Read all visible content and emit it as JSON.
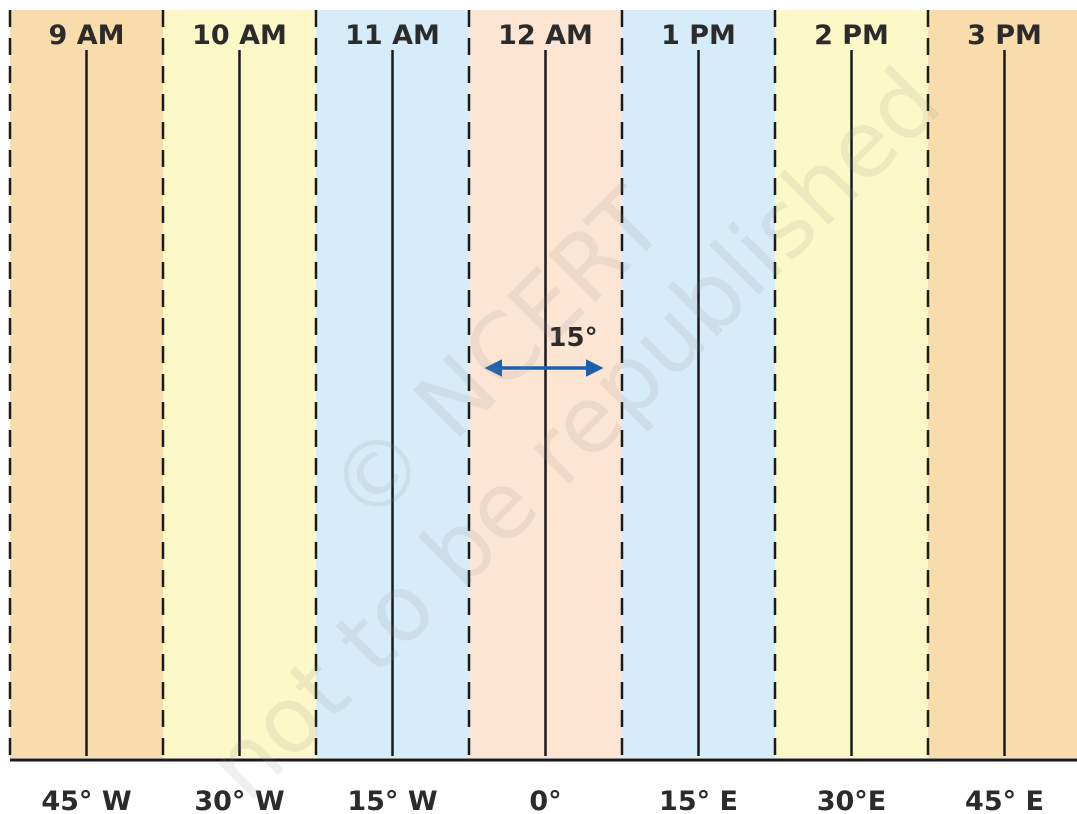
{
  "zones": [
    {
      "time": "9 AM",
      "longitude": "45° W",
      "color": "#f8dcab"
    },
    {
      "time": "10 AM",
      "longitude": "30° W",
      "color": "#fdf8c7"
    },
    {
      "time": "11 AM",
      "longitude": "15° W",
      "color": "#d6ecf8"
    },
    {
      "time": "12 AM",
      "longitude": "0°",
      "color": "#fde5d3"
    },
    {
      "time": "1 PM",
      "longitude": "15° E",
      "color": "#d6ecf8"
    },
    {
      "time": "2 PM",
      "longitude": "30°E",
      "color": "#fdf8c7"
    },
    {
      "time": "3 PM",
      "longitude": "45° E",
      "color": "#f8dcab"
    }
  ],
  "interval_label": "15°",
  "arrow_color": "#1a62b0",
  "watermark": {
    "line1": "© NCERT",
    "line2": "not to be republished"
  }
}
